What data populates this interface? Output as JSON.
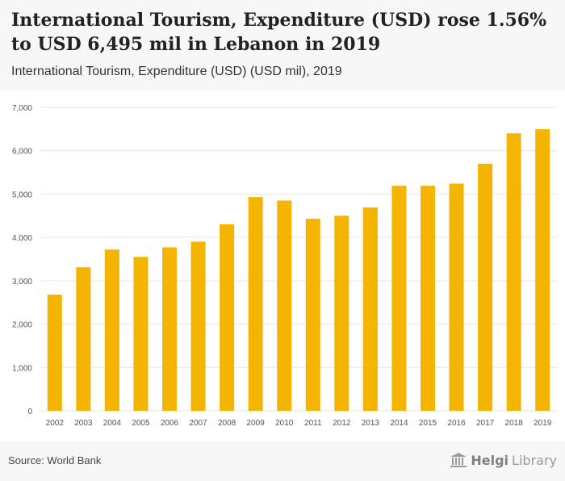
{
  "header": {
    "title": "International Tourism, Expenditure (USD) rose 1.56% to USD 6,495 mil in Lebanon in 2019",
    "subtitle": "International Tourism, Expenditure (USD) (USD mil), 2019"
  },
  "footer": {
    "source": "Source: World Bank",
    "logo_helgi": "Helgi",
    "logo_library": "Library"
  },
  "colors": {
    "bar": "#f5b400",
    "grid": "#e6e6e6",
    "axis_text": "#555555"
  },
  "chart_data": {
    "type": "bar",
    "title": "International Tourism, Expenditure (USD) rose 1.56% to USD 6,495 mil in Lebanon in 2019",
    "subtitle": "International Tourism, Expenditure (USD) (USD mil), 2019",
    "xlabel": "",
    "ylabel": "",
    "ylim": [
      0,
      7000
    ],
    "yticks": [
      0,
      1000,
      2000,
      3000,
      4000,
      5000,
      6000,
      7000
    ],
    "ytick_labels": [
      "0",
      "1,000",
      "2,000",
      "3,000",
      "4,000",
      "5,000",
      "6,000",
      "7,000"
    ],
    "grid": true,
    "categories": [
      "2002",
      "2003",
      "2004",
      "2005",
      "2006",
      "2007",
      "2008",
      "2009",
      "2010",
      "2011",
      "2012",
      "2013",
      "2014",
      "2015",
      "2016",
      "2017",
      "2018",
      "2019"
    ],
    "values": [
      2680,
      3310,
      3720,
      3550,
      3770,
      3900,
      4300,
      4930,
      4850,
      4430,
      4500,
      4690,
      5190,
      5190,
      5240,
      5700,
      6400,
      6495
    ]
  }
}
